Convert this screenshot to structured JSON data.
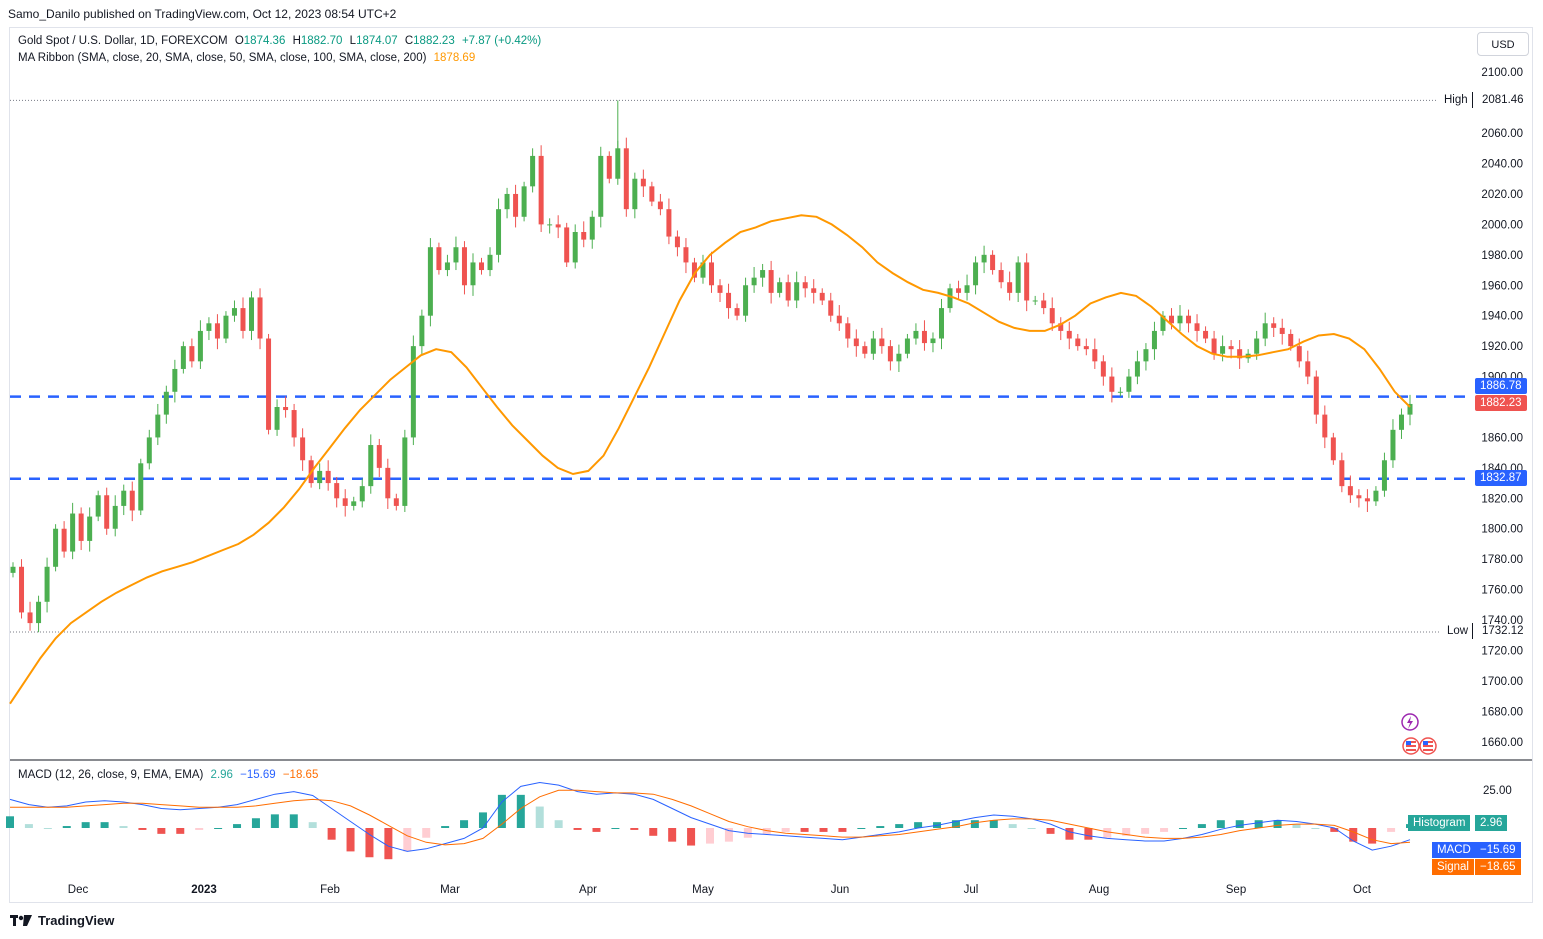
{
  "attribution": "Samo_Danilo published on TradingView.com, Oct 12, 2023 08:54 UTC+2",
  "currency_button": "USD",
  "legend": {
    "symbol": "Gold Spot / U.S. Dollar, 1D, FOREXCOM",
    "open_label": "O",
    "open": "1874.36",
    "high_label": "H",
    "high": "1882.70",
    "low_label": "L",
    "low": "1874.07",
    "close_label": "C",
    "close": "1882.23",
    "change": "+7.87 (+0.42%)",
    "ma_label": "MA Ribbon (SMA, close, 20, SMA, close, 50, SMA, close, 100, SMA, close, 200)",
    "ma_value": "1878.69",
    "macd_label": "MACD (12, 26, close, 9, EMA, EMA)",
    "macd_hist": "2.96",
    "macd_macd": "−15.69",
    "macd_signal": "−18.65"
  },
  "price_tags": {
    "high_label": "High",
    "high_value": "2081.46",
    "low_label": "Low",
    "low_value": "1732.12",
    "resistance": "1886.78",
    "current": "1882.23",
    "support": "1832.87"
  },
  "macd_tags": {
    "hist_label": "Histogram",
    "hist_value": "2.96",
    "macd_label": "MACD",
    "macd_value": "−15.69",
    "signal_label": "Signal",
    "signal_value": "−18.65",
    "axis_tick": "25.00"
  },
  "footer": {
    "brand": "TradingView"
  },
  "colors": {
    "up": "#26a69a",
    "up_candle": "#4caf50",
    "down": "#ef5350",
    "ma": "#ff9800",
    "level": "#2962ff",
    "macd": "#2962ff",
    "signal": "#ff6d00"
  },
  "chart_data": {
    "type": "candlestick",
    "x_labels": [
      "Dec",
      "2023",
      "Feb",
      "Mar",
      "Apr",
      "May",
      "Jun",
      "Jul",
      "Aug",
      "Sep",
      "Oct"
    ],
    "y_ticks": [
      1660,
      1680,
      1700,
      1720,
      1740,
      1760,
      1780,
      1800,
      1820,
      1840,
      1860,
      1880,
      1900,
      1920,
      1940,
      1960,
      1980,
      2000,
      2020,
      2040,
      2060,
      2100
    ],
    "ylim": [
      1650,
      2110
    ],
    "levels": [
      1886.78,
      1832.87
    ],
    "high": 2081.46,
    "low": 1732.12,
    "close_path": [
      1775,
      1745,
      1738,
      1752,
      1775,
      1800,
      1785,
      1810,
      1792,
      1808,
      1822,
      1800,
      1815,
      1825,
      1812,
      1843,
      1860,
      1875,
      1890,
      1905,
      1920,
      1910,
      1930,
      1935,
      1925,
      1940,
      1945,
      1930,
      1952,
      1925,
      1865,
      1880,
      1878,
      1860,
      1845,
      1830,
      1838,
      1830,
      1820,
      1815,
      1818,
      1828,
      1855,
      1840,
      1820,
      1815,
      1860,
      1920,
      1940,
      1985,
      1970,
      1975,
      1985,
      1960,
      1975,
      1970,
      1980,
      2010,
      2020,
      2005,
      2025,
      2045,
      2000,
      2000,
      1998,
      1975,
      1995,
      1990,
      2005,
      2045,
      2030,
      2050,
      2010,
      2030,
      2025,
      2015,
      2010,
      1992,
      1985,
      1975,
      1965,
      1975,
      1960,
      1955,
      1945,
      1940,
      1960,
      1965,
      1970,
      1955,
      1962,
      1950,
      1962,
      1958,
      1955,
      1950,
      1940,
      1935,
      1925,
      1920,
      1915,
      1925,
      1920,
      1910,
      1915,
      1925,
      1930,
      1922,
      1925,
      1945,
      1958,
      1955,
      1960,
      1975,
      1980,
      1970,
      1962,
      1955,
      1975,
      1950,
      1950,
      1945,
      1935,
      1930,
      1925,
      1920,
      1918,
      1910,
      1900,
      1890,
      1890,
      1900,
      1910,
      1918,
      1930,
      1940,
      1935,
      1940,
      1935,
      1930,
      1925,
      1915,
      1920,
      1918,
      1912,
      1915,
      1925,
      1935,
      1932,
      1928,
      1920,
      1910,
      1900,
      1875,
      1860,
      1845,
      1828,
      1822,
      1820,
      1818,
      1825,
      1845,
      1865,
      1875,
      1882
    ],
    "ma20": [
      1685,
      1700,
      1715,
      1728,
      1738,
      1745,
      1752,
      1758,
      1763,
      1768,
      1772,
      1775,
      1778,
      1782,
      1786,
      1790,
      1796,
      1804,
      1814,
      1826,
      1840,
      1853,
      1866,
      1878,
      1888,
      1898,
      1906,
      1914,
      1918,
      1916,
      1906,
      1893,
      1880,
      1868,
      1858,
      1848,
      1840,
      1836,
      1838,
      1848,
      1866,
      1886,
      1906,
      1928,
      1950,
      1968,
      1980,
      1988,
      1995,
      1998,
      2002,
      2004,
      2006,
      2005,
      2000,
      1993,
      1985,
      1975,
      1968,
      1962,
      1957,
      1955,
      1952,
      1948,
      1942,
      1936,
      1932,
      1930,
      1930,
      1934,
      1940,
      1948,
      1952,
      1955,
      1953,
      1946,
      1937,
      1928,
      1920,
      1915,
      1913,
      1913,
      1914,
      1916,
      1918,
      1923,
      1927,
      1928,
      1925,
      1918,
      1905,
      1890,
      1880
    ],
    "macd": {
      "hist_value": 2.96,
      "macd_value": -15.69,
      "signal_value": -18.65,
      "axis_tick": 25.0,
      "macd_line": [
        22,
        18,
        16,
        17,
        20,
        21,
        20,
        18,
        15,
        14,
        15,
        16,
        18,
        22,
        26,
        28,
        25,
        15,
        5,
        -5,
        -14,
        -18,
        -16,
        -12,
        -8,
        0,
        20,
        32,
        35,
        33,
        28,
        26,
        27,
        26,
        22,
        15,
        8,
        3,
        -2,
        -4,
        -5,
        -6,
        -7,
        -8,
        -9,
        -7,
        -5,
        -3,
        0,
        2,
        5,
        8,
        10,
        9,
        7,
        3,
        -3,
        -6,
        -8,
        -9,
        -10,
        -10,
        -8,
        -5,
        -1,
        2,
        4,
        6,
        5,
        3,
        0,
        -10,
        -17,
        -14,
        -9
      ],
      "signal_line": [
        16,
        16,
        16,
        16,
        17,
        18,
        19,
        19,
        18,
        17,
        16,
        16,
        16,
        17,
        19,
        21,
        22,
        21,
        17,
        10,
        2,
        -6,
        -11,
        -13,
        -12,
        -8,
        3,
        15,
        24,
        29,
        29,
        28,
        27,
        27,
        26,
        22,
        17,
        11,
        5,
        1,
        -2,
        -4,
        -5,
        -6,
        -7,
        -7,
        -6,
        -5,
        -3,
        -1,
        1,
        4,
        6,
        7,
        7,
        6,
        3,
        0,
        -3,
        -5,
        -7,
        -8,
        -8,
        -7,
        -5,
        -2,
        0,
        2,
        3,
        3,
        2,
        -3,
        -9,
        -12,
        -11
      ]
    }
  }
}
